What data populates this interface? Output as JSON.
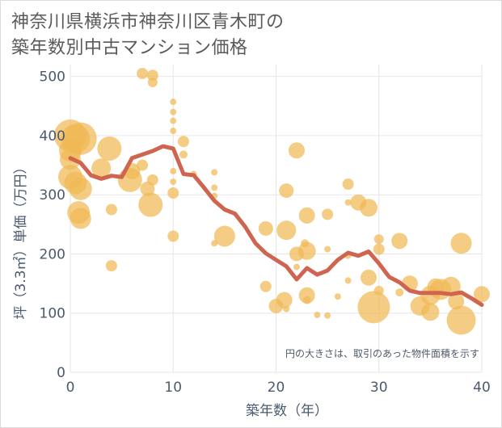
{
  "title_lines": [
    "神奈川県横浜市神奈川区青木町の",
    "築年数別中古マンション価格"
  ],
  "chart_data": {
    "type": "scatter",
    "title": "神奈川県横浜市神奈川区青木町の築年数別中古マンション価格",
    "xlabel": "築年数（年）",
    "ylabel": "坪（3.3㎡）単価（万円）",
    "xlim": [
      0,
      40
    ],
    "ylim": [
      0,
      520
    ],
    "x_ticks": [
      0,
      10,
      20,
      30,
      40
    ],
    "y_ticks": [
      0,
      100,
      200,
      300,
      400,
      500
    ],
    "grid": true,
    "note": "円の大きさは、取引のあった物件面積を示す",
    "colors": {
      "bubble": "#f0b955",
      "line": "#cf6450",
      "grid": "#e6e6e6",
      "axis_text": "#4a5a6e"
    },
    "bubbles": [
      {
        "x": 0,
        "y": 400,
        "s": 20
      },
      {
        "x": 0.5,
        "y": 395,
        "s": 18
      },
      {
        "x": 1,
        "y": 395,
        "s": 20
      },
      {
        "x": 0,
        "y": 375,
        "s": 14
      },
      {
        "x": 0,
        "y": 360,
        "s": 13
      },
      {
        "x": 0,
        "y": 330,
        "s": 15
      },
      {
        "x": 0.5,
        "y": 320,
        "s": 14
      },
      {
        "x": 1,
        "y": 310,
        "s": 14
      },
      {
        "x": 0.8,
        "y": 270,
        "s": 14
      },
      {
        "x": 1,
        "y": 260,
        "s": 13
      },
      {
        "x": 3,
        "y": 345,
        "s": 12
      },
      {
        "x": 3.8,
        "y": 378,
        "s": 15
      },
      {
        "x": 4,
        "y": 275,
        "s": 7
      },
      {
        "x": 4,
        "y": 180,
        "s": 7
      },
      {
        "x": 5.8,
        "y": 325,
        "s": 15
      },
      {
        "x": 6,
        "y": 340,
        "s": 10
      },
      {
        "x": 7,
        "y": 350,
        "s": 7
      },
      {
        "x": 7,
        "y": 505,
        "s": 7
      },
      {
        "x": 7.5,
        "y": 310,
        "s": 9
      },
      {
        "x": 8,
        "y": 502,
        "s": 7
      },
      {
        "x": 8,
        "y": 490,
        "s": 6
      },
      {
        "x": 8,
        "y": 325,
        "s": 7
      },
      {
        "x": 7.8,
        "y": 283,
        "s": 15
      },
      {
        "x": 10,
        "y": 457,
        "s": 4
      },
      {
        "x": 10,
        "y": 440,
        "s": 4
      },
      {
        "x": 10,
        "y": 425,
        "s": 4
      },
      {
        "x": 10,
        "y": 408,
        "s": 4
      },
      {
        "x": 10,
        "y": 340,
        "s": 4
      },
      {
        "x": 10,
        "y": 322,
        "s": 4
      },
      {
        "x": 10,
        "y": 303,
        "s": 7
      },
      {
        "x": 10,
        "y": 230,
        "s": 7
      },
      {
        "x": 11,
        "y": 390,
        "s": 7
      },
      {
        "x": 11,
        "y": 368,
        "s": 5
      },
      {
        "x": 12,
        "y": 335,
        "s": 4
      },
      {
        "x": 14,
        "y": 338,
        "s": 4
      },
      {
        "x": 14,
        "y": 312,
        "s": 4
      },
      {
        "x": 14,
        "y": 298,
        "s": 4
      },
      {
        "x": 14,
        "y": 218,
        "s": 4
      },
      {
        "x": 15,
        "y": 230,
        "s": 13
      },
      {
        "x": 19,
        "y": 243,
        "s": 9
      },
      {
        "x": 19,
        "y": 145,
        "s": 7
      },
      {
        "x": 20,
        "y": 112,
        "s": 9
      },
      {
        "x": 20.8,
        "y": 122,
        "s": 10
      },
      {
        "x": 21,
        "y": 107,
        "s": 4
      },
      {
        "x": 21,
        "y": 307,
        "s": 9
      },
      {
        "x": 21,
        "y": 240,
        "s": 12
      },
      {
        "x": 22,
        "y": 375,
        "s": 10
      },
      {
        "x": 22,
        "y": 200,
        "s": 9
      },
      {
        "x": 22,
        "y": 178,
        "s": 4
      },
      {
        "x": 22.8,
        "y": 218,
        "s": 5
      },
      {
        "x": 23,
        "y": 265,
        "s": 10
      },
      {
        "x": 23,
        "y": 205,
        "s": 11
      },
      {
        "x": 23,
        "y": 130,
        "s": 10
      },
      {
        "x": 23,
        "y": 122,
        "s": 5
      },
      {
        "x": 24,
        "y": 97,
        "s": 4
      },
      {
        "x": 25,
        "y": 267,
        "s": 7
      },
      {
        "x": 25,
        "y": 208,
        "s": 4
      },
      {
        "x": 25,
        "y": 96,
        "s": 4
      },
      {
        "x": 26,
        "y": 128,
        "s": 4
      },
      {
        "x": 27,
        "y": 318,
        "s": 7
      },
      {
        "x": 27,
        "y": 287,
        "s": 4
      },
      {
        "x": 27,
        "y": 197,
        "s": 4
      },
      {
        "x": 27,
        "y": 155,
        "s": 4
      },
      {
        "x": 28,
        "y": 287,
        "s": 10
      },
      {
        "x": 29,
        "y": 278,
        "s": 11
      },
      {
        "x": 29,
        "y": 160,
        "s": 10
      },
      {
        "x": 29.5,
        "y": 110,
        "s": 20
      },
      {
        "x": 30,
        "y": 225,
        "s": 6
      },
      {
        "x": 30,
        "y": 208,
        "s": 7
      },
      {
        "x": 30,
        "y": 138,
        "s": 6
      },
      {
        "x": 32,
        "y": 222,
        "s": 10
      },
      {
        "x": 32,
        "y": 135,
        "s": 5
      },
      {
        "x": 33,
        "y": 150,
        "s": 10
      },
      {
        "x": 34,
        "y": 112,
        "s": 12
      },
      {
        "x": 35,
        "y": 130,
        "s": 12
      },
      {
        "x": 35.5,
        "y": 145,
        "s": 10
      },
      {
        "x": 35,
        "y": 102,
        "s": 11
      },
      {
        "x": 36,
        "y": 140,
        "s": 13
      },
      {
        "x": 37,
        "y": 145,
        "s": 12
      },
      {
        "x": 37.5,
        "y": 120,
        "s": 10
      },
      {
        "x": 38,
        "y": 218,
        "s": 13
      },
      {
        "x": 38,
        "y": 88,
        "s": 18
      },
      {
        "x": 40,
        "y": 132,
        "s": 10
      }
    ],
    "series": [
      {
        "x": [
          0,
          1,
          2,
          3,
          4,
          5,
          6,
          7,
          8,
          9,
          10,
          11,
          12,
          13,
          14,
          15,
          16,
          17,
          18,
          19,
          20,
          21,
          22,
          23,
          24,
          25,
          26,
          27,
          28,
          29,
          30,
          31,
          32,
          33,
          34,
          35,
          36,
          37,
          38,
          39,
          40
        ],
        "y": [
          362,
          354,
          333,
          327,
          332,
          330,
          362,
          368,
          374,
          382,
          378,
          335,
          333,
          312,
          290,
          275,
          268,
          246,
          218,
          201,
          190,
          179,
          157,
          176,
          165,
          172,
          190,
          202,
          197,
          204,
          184,
          161,
          152,
          138,
          134,
          134,
          134,
          132,
          135,
          125,
          114
        ]
      }
    ]
  }
}
